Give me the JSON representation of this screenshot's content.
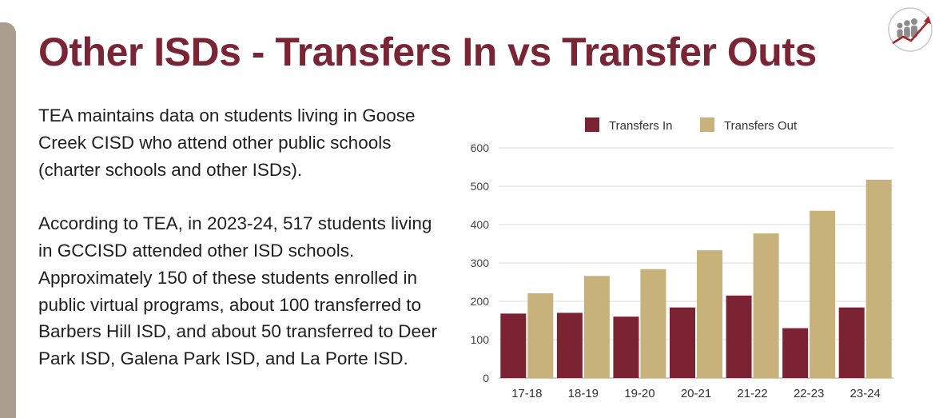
{
  "slide": {
    "title": "Other ISDs - Transfers In vs Transfer Outs",
    "paragraphs": [
      "TEA maintains data on students living in Goose Creek CISD who attend other public schools (charter schools and other ISDs).",
      "According to TEA, in 2023-24, 517 students living in GCCISD attended other ISD schools. Approximately 150 of these students enrolled in public virtual programs, about 100 transferred to Barbers Hill ISD, and about 50 transferred to Deer Park ISD, Galena Park ISD, and La Porte ISD."
    ],
    "logo_icon": "people-growth-chart-icon"
  },
  "colors": {
    "title": "#7a2535",
    "transfers_in": "#7b2333",
    "transfers_out": "#c6b27a",
    "side_bar": "#ab9d8e"
  },
  "chart_data": {
    "type": "bar",
    "title": "",
    "xlabel": "",
    "ylabel": "",
    "categories": [
      "17-18",
      "18-19",
      "19-20",
      "20-21",
      "21-22",
      "22-23",
      "23-24"
    ],
    "series": [
      {
        "name": "Transfers In",
        "values": [
          168,
          170,
          160,
          184,
          215,
          130,
          184
        ]
      },
      {
        "name": "Transfers Out",
        "values": [
          221,
          266,
          284,
          333,
          377,
          436,
          517
        ]
      }
    ],
    "ylim": [
      0,
      600
    ],
    "yticks": [
      0,
      100,
      200,
      300,
      400,
      500,
      600
    ],
    "grid": true,
    "legend": "top"
  }
}
